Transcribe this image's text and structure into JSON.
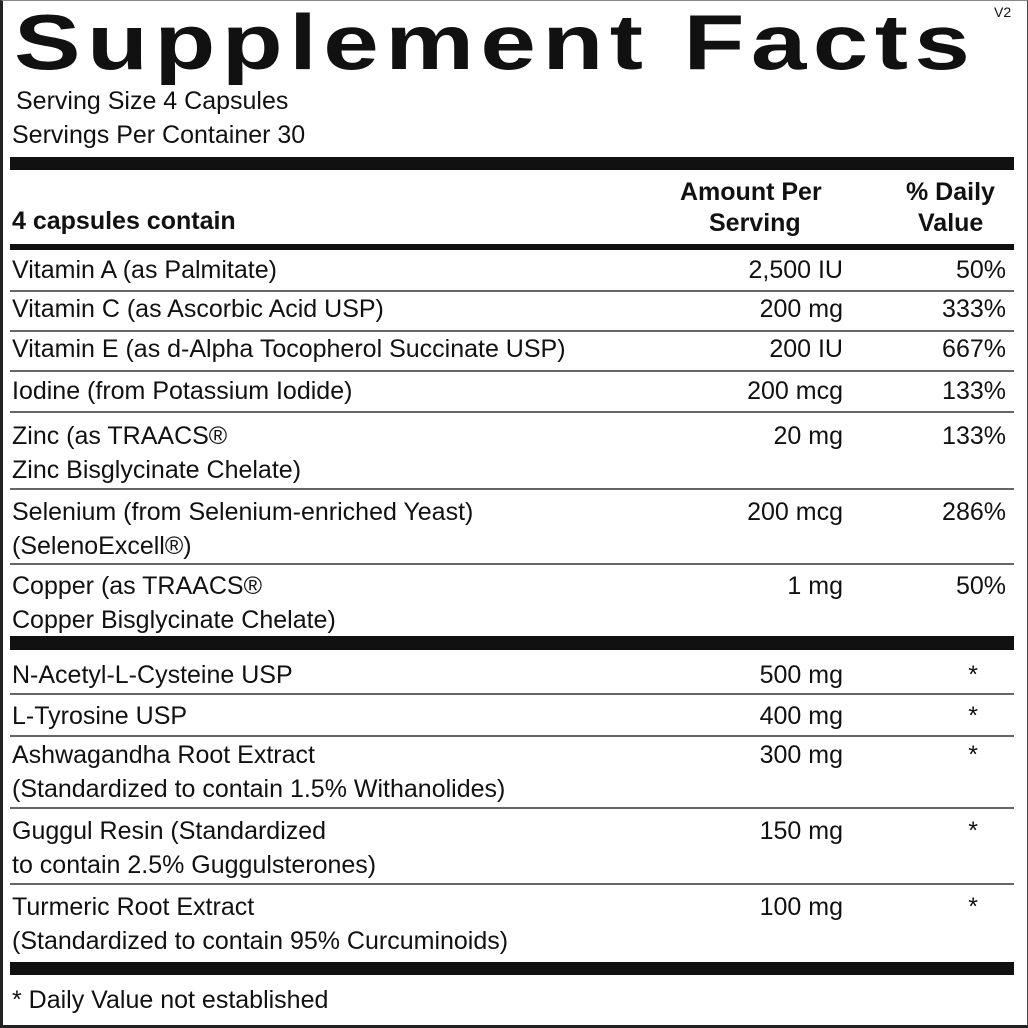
{
  "title": "Supplement Facts",
  "version": "V2",
  "serving_size": "Serving Size 4 Capsules",
  "servings_per_container": "Servings Per Container 30",
  "header": {
    "contain": "4 capsules contain",
    "amount_line1": "Amount Per",
    "amount_line2": "Serving",
    "dv_line1": "% Daily",
    "dv_line2": "Value"
  },
  "vitamins": [
    {
      "line1": "Vitamin A (as Palmitate)",
      "amount": "2,500 IU",
      "dv": "50%"
    },
    {
      "line1": "Vitamin C (as Ascorbic Acid USP)",
      "amount": "200 mg",
      "dv": "333%"
    },
    {
      "line1": "Vitamin E (as d-Alpha Tocopherol Succinate USP)",
      "amount": "200 IU",
      "dv": "667%"
    },
    {
      "line1": "Iodine (from Potassium Iodide)",
      "amount": "200 mcg",
      "dv": "133%"
    },
    {
      "line1": "Zinc (as TRAACS®",
      "line2": "Zinc Bisglycinate Chelate)",
      "amount": "20 mg",
      "dv": "133%"
    },
    {
      "line1": "Selenium (from Selenium-enriched Yeast)",
      "line2": "(SelenoExcell®)",
      "amount": "200 mcg",
      "dv": "286%"
    },
    {
      "line1": "Copper (as TRAACS®",
      "line2": "Copper Bisglycinate Chelate)",
      "amount": "1 mg",
      "dv": "50%"
    }
  ],
  "others": [
    {
      "line1": "N-Acetyl-L-Cysteine USP",
      "amount": "500 mg",
      "dv": "*"
    },
    {
      "line1": "L-Tyrosine USP",
      "amount": "400 mg",
      "dv": "*"
    },
    {
      "line1": "Ashwagandha Root Extract",
      "line2": "(Standardized to contain 1.5% Withanolides)",
      "amount": "300 mg",
      "dv": "*"
    },
    {
      "line1": "Guggul Resin (Standardized",
      "line2": "to contain 2.5% Guggulsterones)",
      "amount": "150 mg",
      "dv": "*"
    },
    {
      "line1": "Turmeric Root Extract",
      "line2": "(Standardized to contain 95% Curcuminoids)",
      "amount": "100 mg",
      "dv": "*"
    }
  ],
  "footnote": "* Daily Value not established"
}
